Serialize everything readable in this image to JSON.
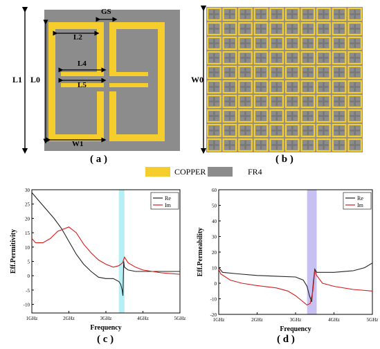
{
  "figure": {
    "panel_labels": [
      "( a )",
      "( b )",
      "( c )",
      "( d )"
    ],
    "dimension_labels": {
      "gs": "GS",
      "l1": "L1",
      "l0": "L0",
      "l2": "L2",
      "l4": "L4",
      "l5": "L5",
      "w1": "W1",
      "w0": "W0"
    },
    "materials_legend": [
      {
        "label": "COPPER",
        "color": "#f5cd2d"
      },
      {
        "label": "FR4",
        "color": "#8c8c8c"
      }
    ],
    "unit_cell": {
      "substrate_color": "#8c8c8c",
      "copper_color": "#f5cd2d"
    },
    "array": {
      "rows": 10,
      "cols": 10,
      "cross_color": "#777777"
    }
  },
  "chart_data": [
    {
      "type": "line",
      "xlabel": "Frequency",
      "ylabel": "Eff.Permitivity",
      "x_tick_labels": [
        "1GHz",
        "2GHz",
        "3GHz",
        "4GHz",
        "5GHz"
      ],
      "y_tick_labels": [
        "-10",
        "-5",
        "0",
        "5",
        "10",
        "15",
        "20",
        "25",
        "30"
      ],
      "xlim": [
        1,
        5
      ],
      "ylim": [
        -13,
        30
      ],
      "highlight_band": {
        "from": 3.35,
        "to": 3.5,
        "color": "#a9ecf2"
      },
      "series": [
        {
          "name": "Re",
          "color": "#222222",
          "x": [
            1.0,
            1.2,
            1.4,
            1.6,
            1.8,
            2.0,
            2.2,
            2.4,
            2.6,
            2.8,
            3.0,
            3.2,
            3.35,
            3.4,
            3.44,
            3.46,
            3.48,
            3.5,
            3.6,
            3.8,
            4.0,
            4.5,
            5.0
          ],
          "y": [
            29,
            26,
            23,
            20,
            16.5,
            12,
            7.5,
            4,
            1.5,
            -0.5,
            -1,
            -1,
            -2,
            -3,
            -5,
            -7,
            5,
            3,
            2,
            1.5,
            1.5,
            1.5,
            1.5
          ]
        },
        {
          "name": "Im",
          "color": "#d61b1b",
          "x": [
            1.0,
            1.1,
            1.3,
            1.5,
            1.7,
            2.0,
            2.2,
            2.4,
            2.6,
            2.8,
            3.0,
            3.2,
            3.35,
            3.45,
            3.5,
            3.6,
            3.8,
            4.0,
            4.5,
            5.0
          ],
          "y": [
            13,
            11.5,
            11.5,
            13,
            15.5,
            17,
            15,
            11,
            8,
            5.5,
            4,
            3,
            3.5,
            4.5,
            6.5,
            4.5,
            3,
            2,
            1,
            0.5
          ]
        }
      ]
    },
    {
      "type": "line",
      "xlabel": "Frequency",
      "ylabel": "Eff.Permeability",
      "x_tick_labels": [
        "1GHz",
        "2GHz",
        "3GHz",
        "4GHz",
        "5GHz"
      ],
      "y_tick_labels": [
        "-20",
        "-10",
        "0",
        "10",
        "20",
        "30",
        "40",
        "50",
        "60"
      ],
      "xlim": [
        1,
        5
      ],
      "ylim": [
        -20,
        60
      ],
      "highlight_band": {
        "from": 3.3,
        "to": 3.55,
        "color": "#bdb6f0"
      },
      "series": [
        {
          "name": "Re",
          "color": "#222222",
          "x": [
            1.0,
            1.1,
            1.5,
            2.0,
            2.5,
            3.0,
            3.2,
            3.3,
            3.36,
            3.42,
            3.46,
            3.5,
            3.55,
            3.7,
            4.0,
            4.5,
            4.8,
            5.0
          ],
          "y": [
            10,
            7,
            6,
            5,
            4.5,
            4,
            2,
            -2,
            -8,
            -12,
            0,
            9,
            7,
            7,
            7,
            8,
            10,
            13
          ]
        },
        {
          "name": "Im",
          "color": "#d61b1b",
          "x": [
            1.0,
            1.05,
            1.3,
            1.6,
            2.0,
            2.5,
            2.8,
            3.0,
            3.2,
            3.3,
            3.38,
            3.45,
            3.5,
            3.55,
            3.7,
            4.0,
            4.5,
            5.0
          ],
          "y": [
            9,
            6,
            2,
            0,
            -1.5,
            -3,
            -5,
            -8,
            -12,
            -14,
            -13,
            -5,
            8,
            5,
            0,
            -2,
            -4,
            -5
          ]
        }
      ]
    }
  ]
}
